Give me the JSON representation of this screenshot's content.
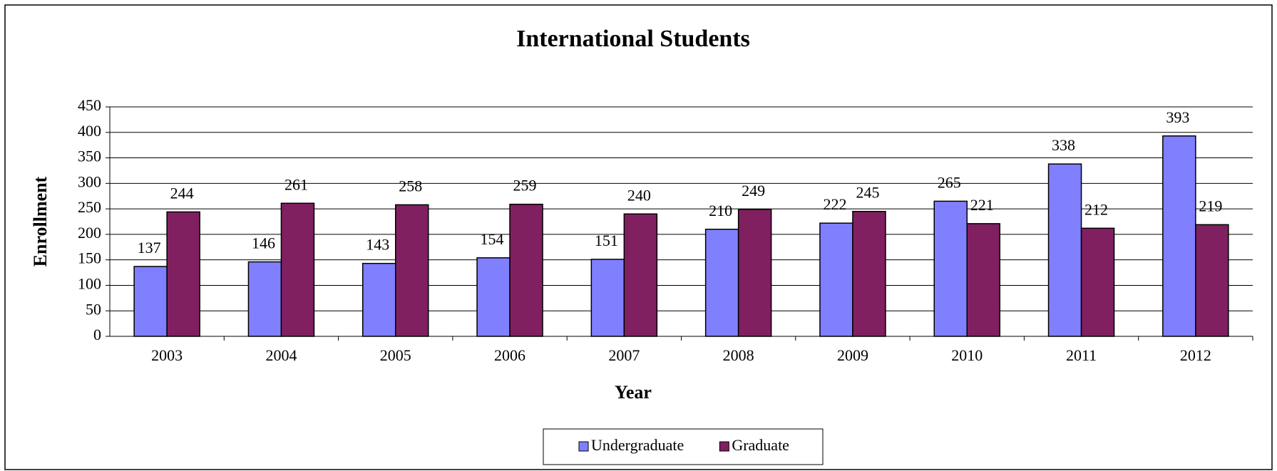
{
  "chart_data": {
    "type": "bar",
    "title": "International Students",
    "x_label": "Year",
    "y_label": "Enrollment",
    "categories": [
      "2003",
      "2004",
      "2005",
      "2006",
      "2007",
      "2008",
      "2009",
      "2010",
      "2011",
      "2012"
    ],
    "series": [
      {
        "name": "Undergraduate",
        "color": "#8080ff",
        "values": [
          137,
          146,
          143,
          154,
          151,
          210,
          222,
          265,
          338,
          393
        ]
      },
      {
        "name": "Graduate",
        "color": "#802060",
        "values": [
          244,
          261,
          258,
          259,
          240,
          249,
          245,
          221,
          212,
          219
        ]
      }
    ],
    "ylim": [
      0,
      450
    ],
    "yticks": [
      0,
      50,
      100,
      150,
      200,
      250,
      300,
      350,
      400,
      450
    ],
    "grid": true,
    "legend": "bottom"
  }
}
